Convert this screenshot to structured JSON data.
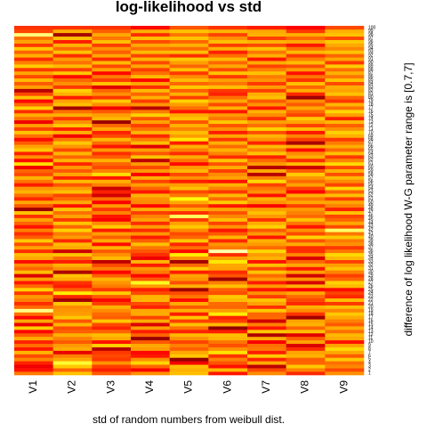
{
  "chart_data": {
    "type": "heatmap",
    "title": "log-likelihood vs std",
    "xlabel": "std of random numbers from weibull dist.",
    "ylabel": "difference of log likelihood W-G parameter range is [0.7,7]",
    "columns": [
      "V1",
      "V2",
      "V3",
      "V4",
      "V5",
      "V6",
      "V7",
      "V8",
      "V9"
    ],
    "rows": [
      "1",
      "2",
      "3",
      "4",
      "5",
      "6",
      "7",
      "8",
      "9",
      "10",
      "11",
      "12",
      "13",
      "14",
      "15",
      "16",
      "17",
      "18",
      "19",
      "20",
      "21",
      "22",
      "23",
      "24",
      "25",
      "26",
      "27",
      "28",
      "29",
      "30",
      "31",
      "32",
      "33",
      "34",
      "35",
      "36",
      "37",
      "38",
      "39",
      "40",
      "41",
      "42",
      "43",
      "44",
      "45",
      "46",
      "47",
      "48",
      "49",
      "50",
      "51",
      "52",
      "53",
      "54",
      "55",
      "56",
      "57",
      "58",
      "59",
      "60",
      "61",
      "62",
      "63",
      "64",
      "65",
      "66",
      "67",
      "68",
      "69",
      "70",
      "71",
      "72",
      "73",
      "74",
      "75",
      "76",
      "77",
      "78",
      "79",
      "80",
      "81",
      "82",
      "83",
      "84",
      "85",
      "86",
      "87",
      "88",
      "89",
      "90",
      "91",
      "92",
      "93",
      "94",
      "95",
      "96",
      "97",
      "98",
      "99",
      "100"
    ],
    "row_order": "bottom-to-top",
    "value_range": [
      0,
      1
    ],
    "colormap": [
      "#800000",
      "#ff0000",
      "#ff8c00",
      "#ffff00",
      "#ffffff"
    ],
    "values": [
      [
        0.47,
        0.62,
        0.41,
        0.51,
        0.61,
        0.29,
        0.5,
        0.32,
        0.51
      ],
      [
        0.28,
        0.43,
        0.3,
        0.24,
        0.58,
        0.6,
        0.38,
        0.48,
        0.38
      ],
      [
        0.22,
        0.63,
        0.36,
        0.43,
        0.61,
        0.28,
        0.12,
        0.63,
        0.49
      ],
      [
        0.31,
        0.8,
        0.52,
        0.66,
        0.23,
        0.4,
        0.57,
        0.43,
        0.45
      ],
      [
        0.49,
        0.56,
        0.35,
        0.51,
        0.04,
        0.48,
        0.32,
        0.42,
        0.63
      ],
      [
        0.38,
        0.48,
        0.38,
        0.29,
        0.63,
        0.34,
        0.64,
        0.58,
        0.41
      ],
      [
        0.59,
        0.21,
        0.35,
        0.26,
        0.56,
        0.69,
        0.3,
        0.55,
        0.56
      ],
      [
        0.29,
        0.57,
        0.1,
        0.54,
        0.42,
        0.51,
        0.47,
        0.33,
        0.67
      ],
      [
        0.45,
        0.53,
        0.65,
        0.56,
        0.48,
        0.39,
        0.45,
        0.18,
        0.55
      ],
      [
        0.31,
        0.41,
        0.28,
        0.41,
        0.37,
        0.46,
        0.24,
        0.55,
        0.28
      ],
      [
        0.57,
        0.48,
        0.56,
        0.05,
        0.51,
        0.59,
        0.57,
        0.42,
        0.56
      ],
      [
        0.42,
        0.58,
        0.61,
        0.43,
        0.6,
        0.61,
        0.09,
        0.19,
        0.6
      ],
      [
        0.26,
        0.42,
        0.43,
        0.3,
        0.31,
        0.3,
        0.63,
        0.61,
        0.45
      ],
      [
        0.64,
        0.39,
        0.31,
        0.54,
        0.45,
        0.04,
        0.29,
        0.43,
        0.57
      ],
      [
        0.21,
        0.59,
        0.38,
        0.18,
        0.61,
        0.6,
        0.48,
        0.58,
        0.41
      ],
      [
        0.56,
        0.4,
        0.63,
        0.57,
        0.36,
        0.36,
        0.16,
        0.55,
        0.48
      ],
      [
        0.26,
        0.63,
        0.42,
        0.37,
        0.63,
        0.31,
        0.44,
        0.06,
        0.56
      ],
      [
        0.45,
        0.54,
        0.44,
        0.57,
        0.3,
        0.71,
        0.43,
        0.34,
        0.63
      ],
      [
        0.88,
        0.52,
        0.5,
        0.56,
        0.58,
        0.54,
        0.63,
        0.5,
        0.49
      ],
      [
        0.44,
        0.5,
        0.58,
        0.31,
        0.41,
        0.43,
        0.34,
        0.58,
        0.61
      ],
      [
        0.33,
        0.63,
        0.36,
        0.38,
        0.57,
        0.44,
        0.55,
        0.32,
        0.35
      ],
      [
        0.48,
        0.07,
        0.26,
        0.59,
        0.27,
        0.6,
        0.62,
        0.38,
        0.61
      ],
      [
        0.53,
        0.32,
        0.41,
        0.59,
        0.46,
        0.63,
        0.36,
        0.44,
        0.32
      ],
      [
        0.35,
        0.71,
        0.64,
        0.38,
        0.39,
        0.39,
        0.51,
        0.56,
        0.37
      ],
      [
        0.65,
        0.42,
        0.35,
        0.3,
        0.06,
        0.42,
        0.29,
        0.25,
        0.27
      ],
      [
        0.44,
        0.3,
        0.47,
        0.53,
        0.58,
        0.61,
        0.53,
        0.58,
        0.6
      ],
      [
        0.29,
        0.34,
        0.52,
        0.78,
        0.39,
        0.48,
        0.3,
        0.17,
        0.65
      ],
      [
        0.54,
        0.57,
        0.59,
        0.41,
        0.52,
        0.06,
        0.53,
        0.52,
        0.43
      ],
      [
        0.18,
        0.62,
        0.42,
        0.26,
        0.55,
        0.4,
        0.44,
        0.16,
        0.36
      ],
      [
        0.61,
        0.09,
        0.25,
        0.47,
        0.3,
        0.33,
        0.62,
        0.54,
        0.48
      ],
      [
        0.43,
        0.51,
        0.48,
        0.52,
        0.64,
        0.55,
        0.38,
        0.29,
        0.62
      ],
      [
        0.5,
        0.58,
        0.38,
        0.3,
        0.44,
        0.56,
        0.61,
        0.56,
        0.54
      ],
      [
        0.27,
        0.3,
        0.12,
        0.59,
        0.07,
        0.7,
        0.28,
        0.43,
        0.36
      ],
      [
        0.56,
        0.44,
        0.6,
        0.22,
        0.51,
        0.54,
        0.58,
        0.18,
        0.6
      ],
      [
        0.6,
        0.62,
        0.51,
        0.33,
        0.71,
        0.33,
        0.53,
        0.49,
        0.67
      ],
      [
        0.33,
        0.15,
        0.41,
        0.4,
        0.26,
        0.92,
        0.66,
        0.33,
        0.46
      ],
      [
        0.55,
        0.56,
        0.59,
        0.46,
        0.45,
        0.47,
        0.44,
        0.33,
        0.35
      ],
      [
        0.39,
        0.6,
        0.27,
        0.61,
        0.32,
        0.52,
        0.53,
        0.57,
        0.51
      ],
      [
        0.63,
        0.32,
        0.57,
        0.42,
        0.63,
        0.32,
        0.58,
        0.4,
        0.47
      ],
      [
        0.42,
        0.53,
        0.42,
        0.3,
        0.43,
        0.59,
        0.29,
        0.65,
        0.63
      ],
      [
        0.33,
        0.47,
        0.54,
        0.52,
        0.38,
        0.41,
        0.53,
        0.38,
        0.46
      ],
      [
        0.48,
        0.65,
        0.3,
        0.33,
        0.5,
        0.29,
        0.41,
        0.51,
        0.85
      ],
      [
        0.28,
        0.43,
        0.64,
        0.54,
        0.63,
        0.52,
        0.65,
        0.29,
        0.38
      ],
      [
        0.43,
        0.62,
        0.5,
        0.33,
        0.55,
        0.37,
        0.57,
        0.46,
        0.56
      ],
      [
        0.55,
        0.35,
        0.24,
        0.55,
        0.35,
        0.61,
        0.34,
        0.62,
        0.43
      ],
      [
        0.34,
        0.55,
        0.29,
        0.48,
        0.84,
        0.49,
        0.53,
        0.44,
        0.37
      ],
      [
        0.62,
        0.45,
        0.48,
        0.36,
        0.33,
        0.4,
        0.61,
        0.48,
        0.62
      ],
      [
        0.06,
        0.62,
        0.35,
        0.57,
        0.57,
        0.55,
        0.54,
        0.53,
        0.31
      ],
      [
        0.41,
        0.28,
        0.53,
        0.26,
        0.41,
        0.29,
        0.24,
        0.36,
        0.48
      ],
      [
        0.56,
        0.57,
        0.24,
        0.5,
        0.56,
        0.64,
        0.52,
        0.56,
        0.56
      ],
      [
        0.32,
        0.44,
        0.45,
        0.51,
        0.76,
        0.44,
        0.58,
        0.46,
        0.36
      ],
      [
        0.45,
        0.37,
        0.16,
        0.58,
        0.47,
        0.6,
        0.28,
        0.58,
        0.61
      ],
      [
        0.58,
        0.61,
        0.31,
        0.29,
        0.38,
        0.35,
        0.51,
        0.25,
        0.43
      ],
      [
        0.52,
        0.53,
        0.15,
        0.43,
        0.61,
        0.48,
        0.46,
        0.37,
        0.66
      ],
      [
        0.3,
        0.4,
        0.48,
        0.54,
        0.54,
        0.58,
        0.37,
        0.55,
        0.37
      ],
      [
        0.46,
        0.6,
        0.58,
        0.37,
        0.3,
        0.28,
        0.67,
        0.44,
        0.5
      ],
      [
        0.59,
        0.31,
        0.29,
        0.58,
        0.51,
        0.55,
        0.48,
        0.52,
        0.6
      ],
      [
        0.38,
        0.56,
        0.68,
        0.24,
        0.38,
        0.5,
        0.11,
        0.64,
        0.39
      ],
      [
        0.43,
        0.41,
        0.48,
        0.53,
        0.59,
        0.36,
        0.56,
        0.41,
        0.58
      ],
      [
        0.23,
        0.53,
        0.38,
        0.38,
        0.53,
        0.57,
        0.1,
        0.15,
        0.38
      ],
      [
        0.68,
        0.32,
        0.43,
        0.53,
        0.27,
        0.4,
        0.53,
        0.6,
        0.67
      ],
      [
        0.27,
        0.59,
        0.58,
        0.12,
        0.46,
        0.62,
        0.44,
        0.33,
        0.49
      ],
      [
        0.51,
        0.43,
        0.42,
        0.62,
        0.57,
        0.33,
        0.31,
        0.57,
        0.35
      ],
      [
        0.31,
        0.59,
        0.33,
        0.4,
        0.33,
        0.49,
        0.62,
        0.5,
        0.61
      ],
      [
        0.63,
        0.38,
        0.53,
        0.54,
        0.48,
        0.58,
        0.48,
        0.27,
        0.44
      ],
      [
        0.55,
        0.52,
        0.29,
        0.19,
        0.58,
        0.44,
        0.6,
        0.56,
        0.57
      ],
      [
        0.41,
        0.63,
        0.44,
        0.61,
        0.3,
        0.58,
        0.31,
        0.08,
        0.47
      ],
      [
        0.27,
        0.47,
        0.6,
        0.47,
        0.7,
        0.35,
        0.52,
        0.36,
        0.35
      ],
      [
        0.45,
        0.23,
        0.38,
        0.32,
        0.54,
        0.56,
        0.59,
        0.49,
        0.58
      ],
      [
        0.62,
        0.58,
        0.31,
        0.59,
        0.61,
        0.3,
        0.39,
        0.29,
        0.65
      ],
      [
        0.37,
        0.31,
        0.56,
        0.45,
        0.48,
        0.51,
        0.65,
        0.6,
        0.51
      ],
      [
        0.54,
        0.63,
        0.44,
        0.36,
        0.58,
        0.4,
        0.45,
        0.36,
        0.42
      ],
      [
        0.22,
        0.51,
        0.05,
        0.55,
        0.4,
        0.63,
        0.54,
        0.55,
        0.6
      ],
      [
        0.46,
        0.35,
        0.59,
        0.4,
        0.62,
        0.46,
        0.34,
        0.63,
        0.31
      ],
      [
        0.57,
        0.58,
        0.54,
        0.65,
        0.57,
        0.53,
        0.5,
        0.37,
        0.54
      ],
      [
        0.33,
        0.45,
        0.41,
        0.47,
        0.29,
        0.29,
        0.58,
        0.44,
        0.66
      ],
      [
        0.65,
        0.07,
        0.23,
        0.11,
        0.45,
        0.58,
        0.29,
        0.56,
        0.45
      ],
      [
        0.44,
        0.61,
        0.5,
        0.52,
        0.53,
        0.38,
        0.52,
        0.41,
        0.59
      ],
      [
        0.26,
        0.55,
        0.63,
        0.36,
        0.65,
        0.56,
        0.41,
        0.5,
        0.35
      ],
      [
        0.62,
        0.3,
        0.35,
        0.58,
        0.36,
        0.45,
        0.61,
        0.06,
        0.43
      ],
      [
        0.38,
        0.58,
        0.51,
        0.43,
        0.58,
        0.31,
        0.57,
        0.32,
        0.62
      ],
      [
        0.11,
        0.65,
        0.43,
        0.6,
        0.42,
        0.35,
        0.36,
        0.57,
        0.55
      ],
      [
        0.54,
        0.35,
        0.19,
        0.33,
        0.63,
        0.61,
        0.54,
        0.43,
        0.57
      ],
      [
        0.41,
        0.51,
        0.62,
        0.55,
        0.43,
        0.46,
        0.35,
        0.61,
        0.38
      ],
      [
        0.6,
        0.44,
        0.36,
        0.26,
        0.6,
        0.54,
        0.52,
        0.34,
        0.62
      ],
      [
        0.38,
        0.27,
        0.47,
        0.6,
        0.5,
        0.35,
        0.47,
        0.46,
        0.46
      ],
      [
        0.56,
        0.63,
        0.26,
        0.45,
        0.35,
        0.62,
        0.62,
        0.28,
        0.58
      ],
      [
        0.35,
        0.36,
        0.55,
        0.36,
        0.61,
        0.38,
        0.48,
        0.54,
        0.45
      ],
      [
        0.64,
        0.6,
        0.38,
        0.56,
        0.43,
        0.56,
        0.37,
        0.39,
        0.64
      ],
      [
        0.48,
        0.45,
        0.6,
        0.38,
        0.54,
        0.43,
        0.57,
        0.6,
        0.35
      ],
      [
        0.33,
        0.53,
        0.33,
        0.59,
        0.63,
        0.6,
        0.29,
        0.48,
        0.56
      ],
      [
        0.58,
        0.33,
        0.56,
        0.37,
        0.33,
        0.45,
        0.58,
        0.35,
        0.43
      ],
      [
        0.43,
        0.62,
        0.42,
        0.6,
        0.61,
        0.31,
        0.46,
        0.6,
        0.62
      ],
      [
        0.63,
        0.44,
        0.51,
        0.45,
        0.44,
        0.58,
        0.62,
        0.45,
        0.49
      ],
      [
        0.35,
        0.58,
        0.36,
        0.56,
        0.58,
        0.36,
        0.38,
        0.29,
        0.56
      ],
      [
        0.55,
        0.3,
        0.61,
        0.38,
        0.43,
        0.61,
        0.58,
        0.56,
        0.63
      ],
      [
        0.45,
        0.61,
        0.46,
        0.61,
        0.62,
        0.51,
        0.36,
        0.43,
        0.38
      ],
      [
        0.87,
        0.07,
        0.56,
        0.33,
        0.46,
        0.37,
        0.58,
        0.58,
        0.62
      ],
      [
        0.37,
        0.58,
        0.42,
        0.58,
        0.62,
        0.59,
        0.56,
        0.35,
        0.58
      ],
      [
        0.34,
        0.34,
        0.34,
        0.26,
        0.4,
        0.34,
        0.3,
        0.25,
        0.38
      ]
    ]
  }
}
